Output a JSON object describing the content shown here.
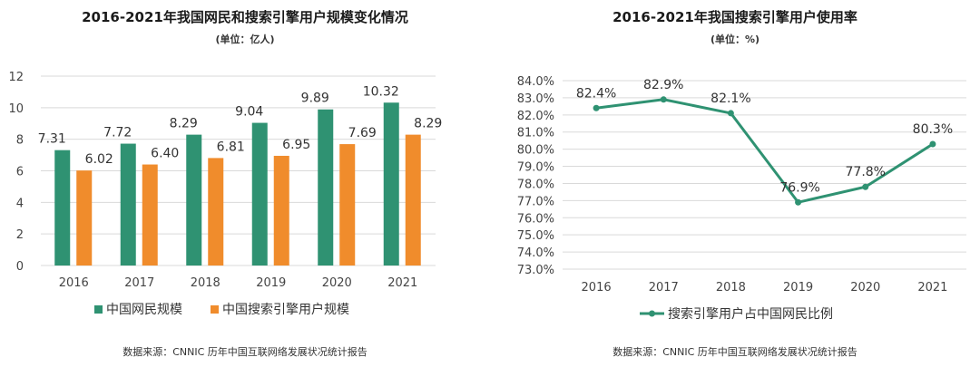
{
  "left": {
    "title": "2016-2021年我国网民和搜索引擎用户规模变化情况",
    "unit": "(单位：亿人)",
    "source": "数据来源：CNNIC  历年中国互联网络发展状况统计报告"
  },
  "right": {
    "title": "2016-2021年我国搜索引擎用户使用率",
    "unit": "(单位：%)",
    "source": "数据来源：CNNIC  历年中国互联网络发展状况统计报告"
  },
  "chart_data": [
    {
      "type": "bar",
      "title": "2016-2021年我国网民和搜索引擎用户规模变化情况",
      "subtitle": "(单位：亿人)",
      "categories": [
        "2016",
        "2017",
        "2018",
        "2019",
        "2020",
        "2021"
      ],
      "series": [
        {
          "name": "中国网民规模",
          "color": "#2f9272",
          "values": [
            7.31,
            7.72,
            8.29,
            9.04,
            9.89,
            10.32
          ],
          "labels": [
            "7.31",
            "7.72",
            "8.29",
            "9.04",
            "9.89",
            "10.32"
          ]
        },
        {
          "name": "中国搜索引擎用户规模",
          "color": "#f08c2c",
          "values": [
            6.02,
            6.4,
            6.81,
            6.95,
            7.69,
            8.29
          ],
          "labels": [
            "6.02",
            "6.40",
            "6.81",
            "6.95",
            "7.69",
            "8.29"
          ]
        }
      ],
      "ylim": [
        0,
        12
      ],
      "yticks": [
        "0",
        "2",
        "4",
        "6",
        "8",
        "10",
        "12"
      ],
      "grid": true,
      "legend": "bottom"
    },
    {
      "type": "line",
      "title": "2016-2021年我国搜索引擎用户使用率",
      "subtitle": "(单位：%)",
      "categories": [
        "2016",
        "2017",
        "2018",
        "2019",
        "2020",
        "2021"
      ],
      "series": [
        {
          "name": "搜索引擎用户占中国网民比例",
          "color": "#2f9272",
          "values": [
            82.4,
            82.9,
            82.1,
            76.9,
            77.8,
            80.3
          ],
          "labels": [
            "82.4%",
            "82.9%",
            "82.1%",
            "76.9%",
            "77.8%",
            "80.3%"
          ]
        }
      ],
      "ylim": [
        73.0,
        84.0
      ],
      "yticks": [
        "73.0%",
        "74.0%",
        "75.0%",
        "76.0%",
        "77.0%",
        "78.0%",
        "79.0%",
        "80.0%",
        "81.0%",
        "82.0%",
        "83.0%",
        "84.0%"
      ],
      "grid": true,
      "legend": "bottom"
    }
  ]
}
